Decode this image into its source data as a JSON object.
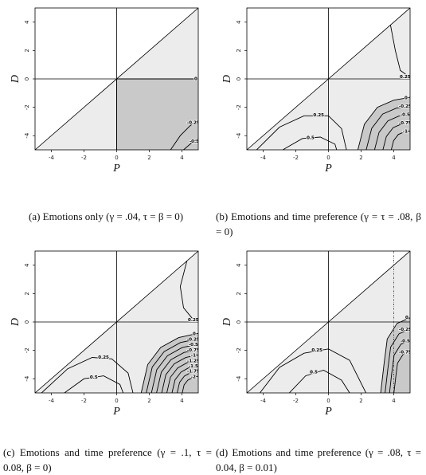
{
  "chart_data": [
    {
      "type": "contour",
      "caption": "(a) Emotions only (γ = .04, τ = β = 0)",
      "xlabel": "P",
      "ylabel": "D",
      "xlim": [
        -5,
        5
      ],
      "ylim": [
        -5,
        5
      ],
      "xticks": [
        -4,
        -2,
        0,
        2,
        4
      ],
      "yticks": [
        -4,
        -2,
        0,
        2,
        4
      ],
      "levels": [
        0,
        -0.25,
        -0.5
      ]
    },
    {
      "type": "contour",
      "caption": "(b) Emotions and time preference (γ = τ = .08, β = 0)",
      "xlabel": "P",
      "ylabel": "D",
      "xlim": [
        -5,
        5
      ],
      "ylim": [
        -5,
        5
      ],
      "xticks": [
        -4,
        -2,
        0,
        2,
        4
      ],
      "yticks": [
        -4,
        -2,
        0,
        2,
        4
      ],
      "levels": [
        0.25,
        0.5,
        0,
        -0.25,
        -0.5,
        -0.75,
        -1
      ]
    },
    {
      "type": "contour",
      "caption": "(c) Emotions and time preference (γ = .1, τ = 0.08, β = 0)",
      "xlabel": "P",
      "ylabel": "D",
      "xlim": [
        -5,
        5
      ],
      "ylim": [
        -5,
        5
      ],
      "xticks": [
        -4,
        -2,
        0,
        2,
        4
      ],
      "yticks": [
        -4,
        -2,
        0,
        2,
        4
      ],
      "levels": [
        0.25,
        0.5,
        0,
        -0.25,
        -0.5,
        -0.75,
        -1,
        -1.25,
        -1.5,
        -1.75,
        -2
      ]
    },
    {
      "type": "contour",
      "caption": "(d) Emotions and time preference (γ = .08, τ = 0.04, β = 0.01)",
      "xlabel": "P",
      "ylabel": "D",
      "xlim": [
        -5,
        5
      ],
      "ylim": [
        -5,
        5
      ],
      "xticks": [
        -4,
        -2,
        0,
        2,
        4
      ],
      "yticks": [
        -4,
        -2,
        0,
        2,
        4
      ],
      "levels": [
        0.25,
        0.5,
        0,
        -0.25,
        -0.5,
        -0.75
      ],
      "vline": 4
    }
  ]
}
